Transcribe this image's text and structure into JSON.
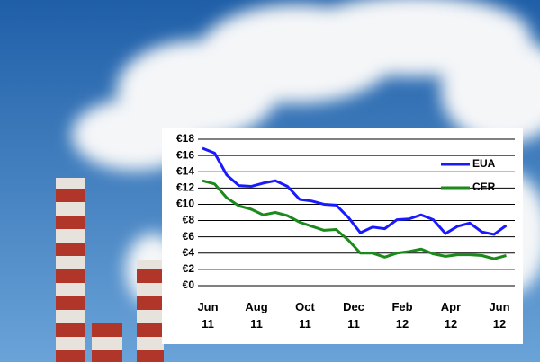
{
  "chart_data": {
    "type": "line",
    "categories": [
      "Jun 11",
      null,
      null,
      null,
      "Aug 11",
      null,
      null,
      null,
      "Oct 11",
      null,
      null,
      null,
      "Dec 11",
      null,
      null,
      null,
      "Feb 12",
      null,
      null,
      null,
      "Apr 12",
      null,
      null,
      null,
      "Jun 12",
      null
    ],
    "series": [
      {
        "name": "EUA",
        "color": "#1a1aff",
        "values": [
          16.9,
          16.3,
          13.6,
          12.3,
          12.2,
          12.6,
          12.9,
          12.2,
          10.6,
          10.4,
          10.0,
          9.9,
          8.4,
          6.5,
          7.2,
          7.0,
          8.1,
          8.2,
          8.7,
          8.1,
          6.4,
          7.3,
          7.7,
          6.6,
          6.3,
          7.4
        ]
      },
      {
        "name": "CER",
        "color": "#1a8a1a",
        "values": [
          12.9,
          12.5,
          10.8,
          9.8,
          9.4,
          8.7,
          9.0,
          8.6,
          7.8,
          7.3,
          6.8,
          6.9,
          5.6,
          4.0,
          4.0,
          3.5,
          4.0,
          4.2,
          4.5,
          3.9,
          3.6,
          3.8,
          3.8,
          3.7,
          3.3,
          3.7
        ]
      }
    ],
    "ylim": [
      0,
      18
    ],
    "yticks": [
      {
        "value": 0,
        "label": "€0"
      },
      {
        "value": 2,
        "label": "€2"
      },
      {
        "value": 4,
        "label": "€4"
      },
      {
        "value": 6,
        "label": "€6"
      },
      {
        "value": 8,
        "label": "€8"
      },
      {
        "value": 10,
        "label": "€10"
      },
      {
        "value": 12,
        "label": "€12"
      },
      {
        "value": 14,
        "label": "€14"
      },
      {
        "value": 16,
        "label": "€16"
      },
      {
        "value": 18,
        "label": "€18"
      }
    ],
    "grid": true
  }
}
